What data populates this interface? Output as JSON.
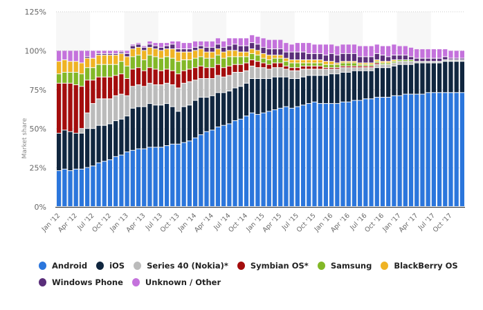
{
  "chart_data": {
    "type": "bar",
    "stacked": true,
    "title": "",
    "xlabel": "",
    "ylabel": "Market share",
    "ylim": [
      0,
      125
    ],
    "yticks": [
      "0%",
      "25%",
      "50%",
      "75%",
      "100%",
      "125%"
    ],
    "ytick_values": [
      0,
      25,
      50,
      75,
      100,
      125
    ],
    "grid": true,
    "legend_position": "bottom-left",
    "xtick_labels": [
      "Jan '12",
      "Apr '12",
      "Jul '12",
      "Oct '12",
      "Jan '13",
      "Apr '13",
      "Jul '13",
      "Oct '13",
      "Jan '14",
      "Apr '14",
      "Jul '14",
      "Oct '14",
      "Jan '15",
      "Apr '15",
      "Jul '15",
      "Oct '15",
      "Jan '16",
      "Apr '16",
      "Jul '16",
      "Oct '16",
      "Jan '17",
      "Apr '17",
      "Jul '17",
      "Oct '17"
    ],
    "categories": [
      "Jan '12",
      "Feb '12",
      "Mar '12",
      "Apr '12",
      "May '12",
      "Jun '12",
      "Jul '12",
      "Aug '12",
      "Sep '12",
      "Oct '12",
      "Nov '12",
      "Dec '12",
      "Jan '13",
      "Feb '13",
      "Mar '13",
      "Apr '13",
      "May '13",
      "Jun '13",
      "Jul '13",
      "Aug '13",
      "Sep '13",
      "Oct '13",
      "Nov '13",
      "Dec '13",
      "Jan '14",
      "Feb '14",
      "Mar '14",
      "Apr '14",
      "May '14",
      "Jun '14",
      "Jul '14",
      "Aug '14",
      "Sep '14",
      "Oct '14",
      "Nov '14",
      "Dec '14",
      "Jan '15",
      "Feb '15",
      "Mar '15",
      "Apr '15",
      "May '15",
      "Jun '15",
      "Jul '15",
      "Aug '15",
      "Sep '15",
      "Oct '15",
      "Nov '15",
      "Dec '15",
      "Jan '16",
      "Feb '16",
      "Mar '16",
      "Apr '16",
      "May '16",
      "Jun '16",
      "Jul '16",
      "Aug '16",
      "Sep '16",
      "Oct '16",
      "Nov '16",
      "Dec '16",
      "Jan '17",
      "Feb '17",
      "Mar '17",
      "Apr '17",
      "May '17",
      "Jun '17",
      "Jul '17",
      "Aug '17",
      "Sep '17",
      "Oct '17",
      "Nov '17",
      "Dec '17"
    ],
    "series": [
      {
        "name": "Android",
        "color": "#2b76dc",
        "values": [
          23,
          24,
          23,
          24,
          24,
          25,
          26,
          28,
          29,
          30,
          32,
          33,
          35,
          36,
          37,
          37,
          38,
          38,
          38,
          39,
          40,
          40,
          41,
          42,
          44,
          46,
          48,
          49,
          51,
          52,
          53,
          55,
          56,
          58,
          60,
          59,
          60,
          61,
          62,
          63,
          64,
          63,
          64,
          65,
          66,
          67,
          66,
          66,
          66,
          66,
          67,
          67,
          68,
          68,
          69,
          69,
          70,
          70,
          70,
          71,
          71,
          72,
          72,
          72,
          72,
          73,
          73,
          73,
          73,
          73,
          73,
          73
        ]
      },
      {
        "name": "iOS",
        "color": "#10263f",
        "values": [
          24,
          25,
          25,
          23,
          23,
          25,
          24,
          24,
          23,
          23,
          23,
          23,
          23,
          27,
          27,
          27,
          28,
          27,
          27,
          27,
          24,
          21,
          23,
          23,
          24,
          24,
          22,
          22,
          22,
          21,
          21,
          21,
          21,
          21,
          22,
          23,
          22,
          21,
          21,
          20,
          19,
          19,
          18,
          18,
          18,
          17,
          18,
          18,
          19,
          19,
          19,
          19,
          19,
          19,
          18,
          18,
          19,
          19,
          19,
          19,
          20,
          19,
          19,
          20,
          20,
          19,
          19,
          19,
          20,
          20,
          20,
          20
        ]
      },
      {
        "name": "Series 40 (Nokia)*",
        "color": "#bbbbbb",
        "values": [
          0,
          0,
          0,
          0,
          3,
          10,
          16,
          17,
          17,
          16,
          16,
          16,
          13,
          14,
          14,
          13,
          13,
          13,
          13,
          13,
          14,
          15,
          15,
          15,
          13,
          12,
          12,
          11,
          11,
          10,
          10,
          10,
          9,
          8,
          8,
          7,
          7,
          6,
          6,
          6,
          5,
          5,
          5,
          5,
          4,
          4,
          4,
          4,
          3,
          3,
          3,
          3,
          2,
          2,
          2,
          2,
          2,
          2,
          2,
          2,
          2,
          2,
          2,
          1,
          1,
          1,
          1,
          1,
          1,
          1,
          1,
          1
        ]
      },
      {
        "name": "Symbian OS*",
        "color": "#a40d0d",
        "values": [
          32,
          30,
          31,
          31,
          27,
          21,
          15,
          14,
          14,
          14,
          13,
          13,
          11,
          11,
          11,
          10,
          10,
          10,
          9,
          9,
          9,
          9,
          8,
          8,
          8,
          8,
          7,
          7,
          7,
          6,
          6,
          5,
          5,
          5,
          4,
          4,
          3,
          3,
          3,
          3,
          2,
          2,
          2,
          2,
          2,
          2,
          2,
          1,
          1,
          1,
          1,
          1,
          1,
          1,
          1,
          1,
          1,
          0,
          0,
          0,
          0,
          0,
          0,
          0,
          0,
          0,
          0,
          0,
          0,
          0,
          0,
          0
        ]
      },
      {
        "name": "Samsung",
        "color": "#82b827",
        "values": [
          6,
          7,
          7,
          8,
          8,
          8,
          8,
          8,
          8,
          8,
          7,
          8,
          8,
          8,
          8,
          7,
          8,
          8,
          8,
          8,
          8,
          8,
          7,
          6,
          6,
          6,
          6,
          6,
          6,
          6,
          6,
          5,
          5,
          4,
          4,
          4,
          3,
          3,
          3,
          3,
          3,
          3,
          3,
          2,
          2,
          2,
          2,
          2,
          2,
          2,
          2,
          2,
          2,
          1,
          1,
          1,
          1,
          1,
          1,
          1,
          1,
          1,
          1,
          0,
          0,
          0,
          0,
          0,
          0,
          0,
          0,
          0
        ]
      },
      {
        "name": "BlackBerry OS",
        "color": "#efb324",
        "values": [
          8,
          8,
          7,
          7,
          7,
          6,
          6,
          6,
          6,
          6,
          6,
          5,
          6,
          5,
          5,
          6,
          5,
          5,
          5,
          5,
          6,
          6,
          5,
          5,
          5,
          5,
          4,
          4,
          4,
          4,
          4,
          4,
          3,
          3,
          3,
          3,
          3,
          3,
          2,
          2,
          2,
          2,
          2,
          2,
          2,
          2,
          2,
          2,
          2,
          1,
          1,
          1,
          1,
          1,
          1,
          1,
          1,
          1,
          1,
          1,
          0,
          0,
          0,
          0,
          0,
          0,
          0,
          0,
          0,
          0,
          0,
          0
        ]
      },
      {
        "name": "Windows Phone",
        "color": "#5a2e7a",
        "values": [
          0,
          0,
          0,
          0,
          0,
          1,
          0,
          1,
          1,
          1,
          1,
          1,
          2,
          2,
          2,
          2,
          2,
          2,
          2,
          2,
          3,
          2,
          2,
          2,
          2,
          2,
          3,
          3,
          3,
          3,
          3,
          4,
          4,
          4,
          4,
          4,
          4,
          4,
          4,
          4,
          4,
          5,
          5,
          5,
          4,
          4,
          4,
          4,
          5,
          5,
          5,
          5,
          5,
          4,
          4,
          4,
          4,
          4,
          3,
          3,
          3,
          3,
          2,
          2,
          2,
          2,
          2,
          2,
          2,
          1,
          1,
          1
        ]
      },
      {
        "name": "Unknown / Other",
        "color": "#c472dc",
        "values": [
          7,
          6,
          7,
          7,
          8,
          4,
          5,
          2,
          2,
          2,
          2,
          1,
          2,
          1,
          1,
          1,
          2,
          2,
          3,
          2,
          2,
          5,
          4,
          4,
          4,
          3,
          4,
          4,
          4,
          4,
          5,
          4,
          5,
          5,
          5,
          5,
          6,
          6,
          6,
          6,
          6,
          5,
          6,
          6,
          7,
          6,
          6,
          7,
          6,
          6,
          6,
          6,
          6,
          7,
          7,
          7,
          6,
          6,
          7,
          7,
          6,
          6,
          6,
          6,
          6,
          6,
          6,
          6,
          5,
          5,
          5,
          5
        ]
      }
    ]
  },
  "legend": {
    "items": [
      {
        "label": "Android",
        "color": "#2b76dc"
      },
      {
        "label": "iOS",
        "color": "#10263f"
      },
      {
        "label": "Series 40 (Nokia)*",
        "color": "#bbbbbb"
      },
      {
        "label": "Symbian OS*",
        "color": "#a40d0d"
      },
      {
        "label": "Samsung",
        "color": "#82b827"
      },
      {
        "label": "BlackBerry OS",
        "color": "#efb324"
      },
      {
        "label": "Windows Phone",
        "color": "#5a2e7a"
      },
      {
        "label": "Unknown / Other",
        "color": "#c472dc"
      }
    ]
  }
}
